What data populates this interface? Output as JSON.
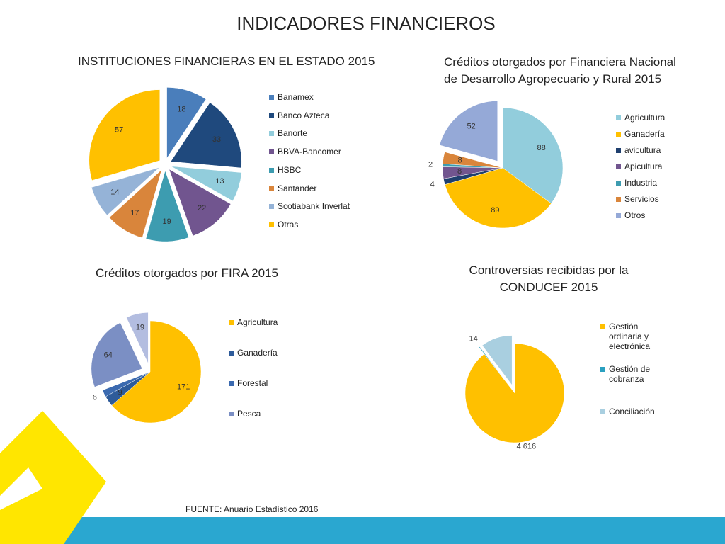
{
  "title": "INDICADORES FINANCIEROS",
  "source": "FUENTE: Anuario Estadístico 2016",
  "chart_data": [
    {
      "type": "pie",
      "title": "INSTITUCIONES FINANCIERAS EN EL ESTADO 2015",
      "categories": [
        "Banamex",
        "Banco Azteca",
        "Banorte",
        "BBVA-Bancomer",
        "HSBC",
        "Santander",
        "Scotiabank Inverlat",
        "Otras"
      ],
      "values": [
        18,
        33,
        13,
        22,
        19,
        17,
        14,
        57
      ],
      "colors": [
        "#4a7ebb",
        "#1f497d",
        "#92cddc",
        "#71558f",
        "#3d9cb0",
        "#d9853b",
        "#95b3d7",
        "#ffc000"
      ]
    },
    {
      "type": "pie",
      "title": "Créditos otorgados por Financiera Nacional de Desarrollo Agropecuario y Rural 2015",
      "categories": [
        "Agricultura",
        "Ganadería",
        "avicultura",
        "Apicultura",
        "Industria",
        "Servicios",
        "Otros"
      ],
      "values": [
        88,
        89,
        4,
        8,
        2,
        8,
        52
      ],
      "colors": [
        "#92cddc",
        "#ffc000",
        "#1f3f6e",
        "#71558f",
        "#3d9cb0",
        "#d9853b",
        "#95a9d7"
      ]
    },
    {
      "type": "pie",
      "title": "Créditos otorgados por FIRA 2015",
      "categories": [
        "Agricultura",
        "Ganadería",
        "Forestal",
        "Pesca",
        null
      ],
      "values": [
        171,
        9,
        6,
        64,
        19
      ],
      "colors": [
        "#ffc000",
        "#2e5b9a",
        "#3b6ab0",
        "#7b8fc4",
        "#b3bde0"
      ]
    },
    {
      "type": "pie",
      "title": "Controversias recibidas por la CONDUCEF 2015",
      "categories": [
        "Gestión ordinaria  y electrónica",
        "Gestión de cobranza",
        "Conciliación"
      ],
      "values": [
        4616,
        14,
        530
      ],
      "value_labels": [
        "4 616",
        "14",
        null
      ],
      "colors": [
        "#ffc000",
        "#2aa0c0",
        "#a9cfe0"
      ]
    }
  ]
}
